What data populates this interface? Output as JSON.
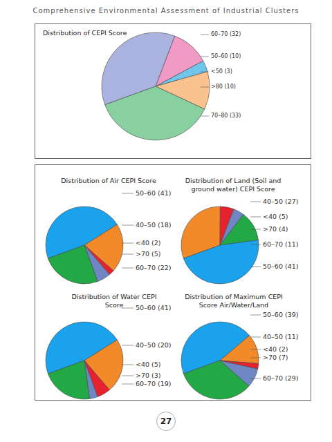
{
  "header": "Comprehensive Environmental Assessment of Industrial Clusters",
  "page": "27",
  "chart_data": [
    {
      "type": "pie",
      "title": "Distribution of CEPI Score",
      "categories": [
        "60–70 (32)",
        "50–60 (10)",
        "<50 (3)",
        ">80 (10)",
        "70–80 (33)"
      ],
      "values": [
        32,
        10,
        3,
        10,
        33
      ],
      "colors": [
        "#aab3e0",
        "#f19ac6",
        "#6fc6ea",
        "#f9c28e",
        "#89d0a0"
      ]
    },
    {
      "type": "pie",
      "title": "Distribution of Air CEPI Score",
      "categories": [
        "50–60 (41)",
        "40–50 (18)",
        "<40 (2)",
        ">70 (5)",
        "60–70 (22)"
      ],
      "values": [
        41,
        18,
        2,
        5,
        22
      ],
      "colors": [
        "#1aa3ec",
        "#f28a2a",
        "#e8212e",
        "#6f86c4",
        "#22a845"
      ]
    },
    {
      "type": "pie",
      "title": "Distribution of Land (Soil and ground water) CEPI Score",
      "categories": [
        "40–50 (27)",
        "<40 (5)",
        ">70 (4)",
        "60–70 (11)",
        "50–60 (41)"
      ],
      "values": [
        27,
        5,
        4,
        11,
        41
      ],
      "colors": [
        "#f28a2a",
        "#e8212e",
        "#6f86c4",
        "#22a845",
        "#1aa3ec"
      ]
    },
    {
      "type": "pie",
      "title": "Distribution of Water CEPI Score",
      "categories": [
        "50–60 (41)",
        "40–50 (20)",
        "<40 (5)",
        ">70 (3)",
        "60–70 (19)"
      ],
      "values": [
        41,
        20,
        5,
        3,
        19
      ],
      "colors": [
        "#1aa3ec",
        "#f28a2a",
        "#e8212e",
        "#6f86c4",
        "#22a845"
      ]
    },
    {
      "type": "pie",
      "title": "Distribution of Maximum CEPI Score Air/Water/Land",
      "categories": [
        "50–60 (39)",
        "40–50 (11)",
        "<40 (2)",
        ">70 (7)",
        "60–70 (29)"
      ],
      "values": [
        39,
        11,
        2,
        7,
        29
      ],
      "colors": [
        "#1aa3ec",
        "#f28a2a",
        "#e8212e",
        "#6f86c4",
        "#22a845"
      ]
    }
  ]
}
